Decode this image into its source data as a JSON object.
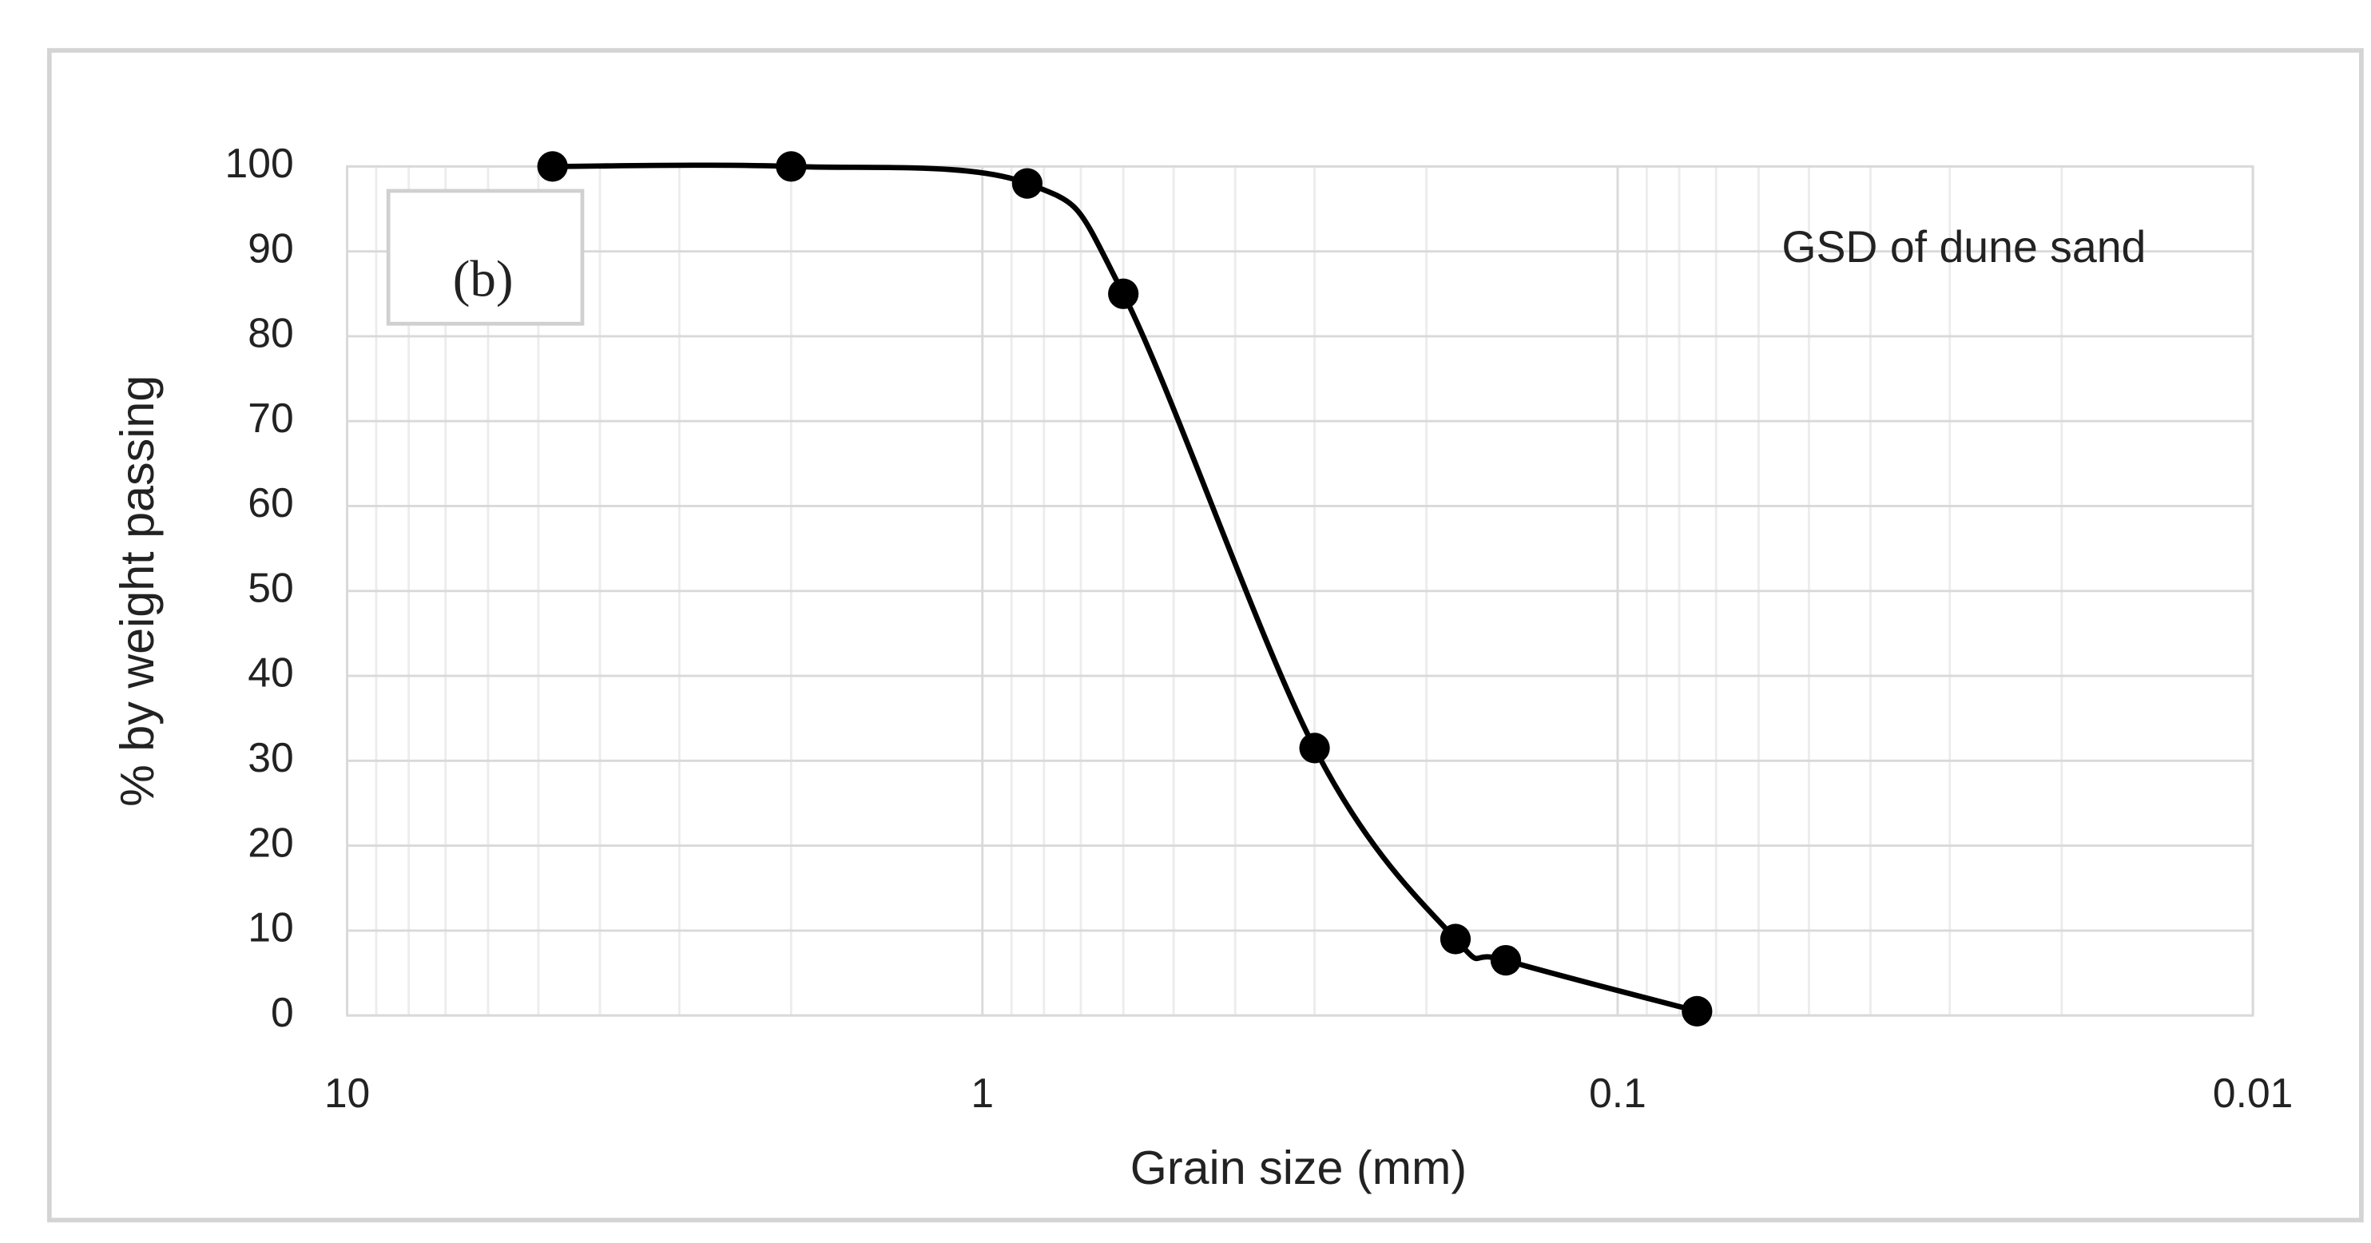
{
  "chart_data": {
    "type": "line",
    "x_label": "Grain size (mm)",
    "y_label": "%  by weight passing",
    "annotations": [
      "(b)",
      "GSD of dune sand"
    ],
    "x": [
      4.75,
      2.0,
      0.85,
      0.6,
      0.3,
      0.18,
      0.15,
      0.075
    ],
    "series": [
      {
        "name": "GSD of dune sand",
        "color": "#000000",
        "values": [
          100,
          100,
          98,
          85,
          31.5,
          9,
          6.5,
          0.5
        ]
      }
    ],
    "xlim": [
      10,
      0.01
    ],
    "xticks": [
      10,
      1,
      0.1,
      0.01
    ],
    "xscale": "log",
    "ylim": [
      0,
      100
    ],
    "yticks": [
      0,
      10,
      20,
      30,
      40,
      50,
      60,
      70,
      80,
      90,
      100
    ],
    "grid": true,
    "minor_grid": true,
    "smooth": true,
    "markers": true
  }
}
